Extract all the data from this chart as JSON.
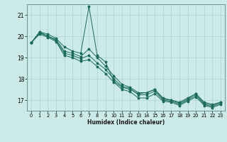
{
  "xlabel": "Humidex (Indice chaleur)",
  "ylabel": "",
  "background_color": "#cceae8",
  "grid_color": "#aad4d0",
  "line_color": "#1a6b5a",
  "xlim": [
    -0.5,
    23.5
  ],
  "ylim": [
    16.5,
    21.5
  ],
  "yticks": [
    17,
    18,
    19,
    20,
    21
  ],
  "xticks": [
    0,
    1,
    2,
    3,
    4,
    5,
    6,
    7,
    8,
    9,
    10,
    11,
    12,
    13,
    14,
    15,
    16,
    17,
    18,
    19,
    20,
    21,
    22,
    23
  ],
  "series": [
    [
      19.7,
      20.2,
      20.1,
      19.9,
      19.5,
      19.3,
      19.2,
      21.4,
      19.1,
      18.8,
      17.9,
      17.6,
      17.5,
      17.3,
      17.35,
      17.5,
      17.1,
      17.0,
      16.9,
      17.1,
      17.3,
      16.9,
      16.8,
      16.9
    ],
    [
      19.7,
      20.2,
      20.0,
      19.85,
      19.3,
      19.2,
      19.05,
      19.4,
      19.0,
      18.6,
      18.15,
      17.75,
      17.6,
      17.35,
      17.35,
      17.5,
      17.05,
      17.0,
      16.85,
      17.05,
      17.3,
      16.85,
      16.75,
      16.9
    ],
    [
      19.7,
      20.15,
      20.0,
      19.8,
      19.2,
      19.1,
      18.95,
      19.1,
      18.75,
      18.45,
      18.0,
      17.65,
      17.55,
      17.25,
      17.25,
      17.42,
      17.0,
      16.95,
      16.8,
      17.0,
      17.22,
      16.8,
      16.7,
      16.85
    ],
    [
      19.7,
      20.1,
      19.95,
      19.75,
      19.1,
      19.0,
      18.82,
      18.9,
      18.58,
      18.25,
      17.85,
      17.5,
      17.4,
      17.1,
      17.1,
      17.3,
      16.95,
      16.9,
      16.75,
      16.95,
      17.15,
      16.75,
      16.65,
      16.8
    ]
  ]
}
